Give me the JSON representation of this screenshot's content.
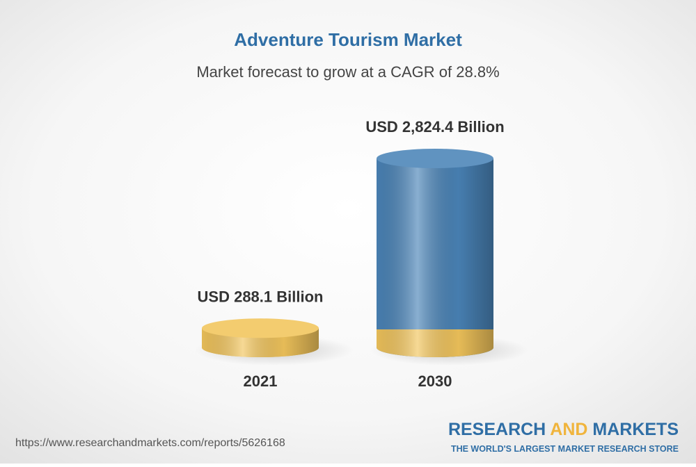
{
  "chart_data": {
    "type": "bar",
    "title": "Adventure Tourism Market",
    "subtitle": "Market forecast to grow at a CAGR of 28.8%",
    "categories": [
      "2021",
      "2030"
    ],
    "values": [
      288.1,
      2824.4
    ],
    "value_labels": [
      "USD 288.1 Billion",
      "USD 2,824.4 Billion"
    ],
    "colors": [
      "#f2c55c",
      "#4a84b8"
    ],
    "base_color": "#f2c55c"
  },
  "footer": {
    "source": "https://www.researchandmarkets.com/reports/5626168",
    "brand": [
      "RESEARCH",
      "AND",
      "MARKETS"
    ],
    "tagline": "THE WORLD'S LARGEST MARKET RESEARCH STORE"
  }
}
